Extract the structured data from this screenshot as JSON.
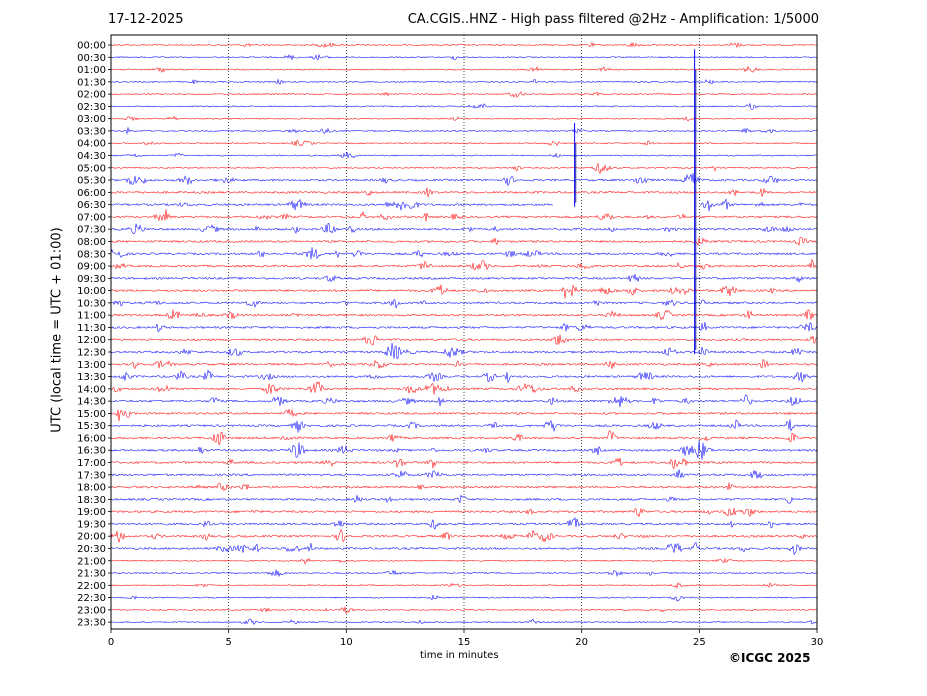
{
  "date": "17-12-2025",
  "title": "CA.CGIS..HNZ - High pass filtered @2Hz - Amplification: 1/5000",
  "copyright": "©ICGC 2025",
  "chart_data": {
    "type": "line",
    "subtype": "helicorder",
    "ylabel": "UTC (local time = UTC + 01:00)",
    "xlabel": "time in minutes",
    "xlim": [
      0,
      30
    ],
    "xticks": [
      0,
      5,
      10,
      15,
      20,
      25,
      30
    ],
    "xtick_labels": [
      "0",
      "5",
      "10",
      "15",
      "20",
      "25",
      "30"
    ],
    "grid": "vertical dotted at 5,10,15,20,25",
    "colors": {
      "even": "#ff0000",
      "odd": "#0000ff"
    },
    "rows": [
      "00:00",
      "00:30",
      "01:00",
      "01:30",
      "02:00",
      "02:30",
      "03:00",
      "03:30",
      "04:00",
      "04:30",
      "05:00",
      "05:30",
      "06:00",
      "06:30",
      "07:00",
      "07:30",
      "08:00",
      "08:30",
      "09:00",
      "09:30",
      "10:00",
      "10:30",
      "11:00",
      "11:30",
      "12:00",
      "12:30",
      "13:00",
      "13:30",
      "14:00",
      "14:30",
      "15:00",
      "15:30",
      "16:00",
      "16:30",
      "17:00",
      "17:30",
      "18:00",
      "18:30",
      "19:00",
      "19:30",
      "20:00",
      "20:30",
      "21:00",
      "21:30",
      "22:00",
      "22:30",
      "23:00",
      "23:30"
    ],
    "data_gap": {
      "row": "06:30",
      "from_minute": 18.8,
      "to_minute": 25.0
    },
    "spikes": [
      {
        "start_row": "03:30",
        "end_row": "06:30",
        "minute": 19.7
      },
      {
        "start_row": "00:30",
        "end_row": "12:30",
        "minute": 24.8
      }
    ]
  }
}
